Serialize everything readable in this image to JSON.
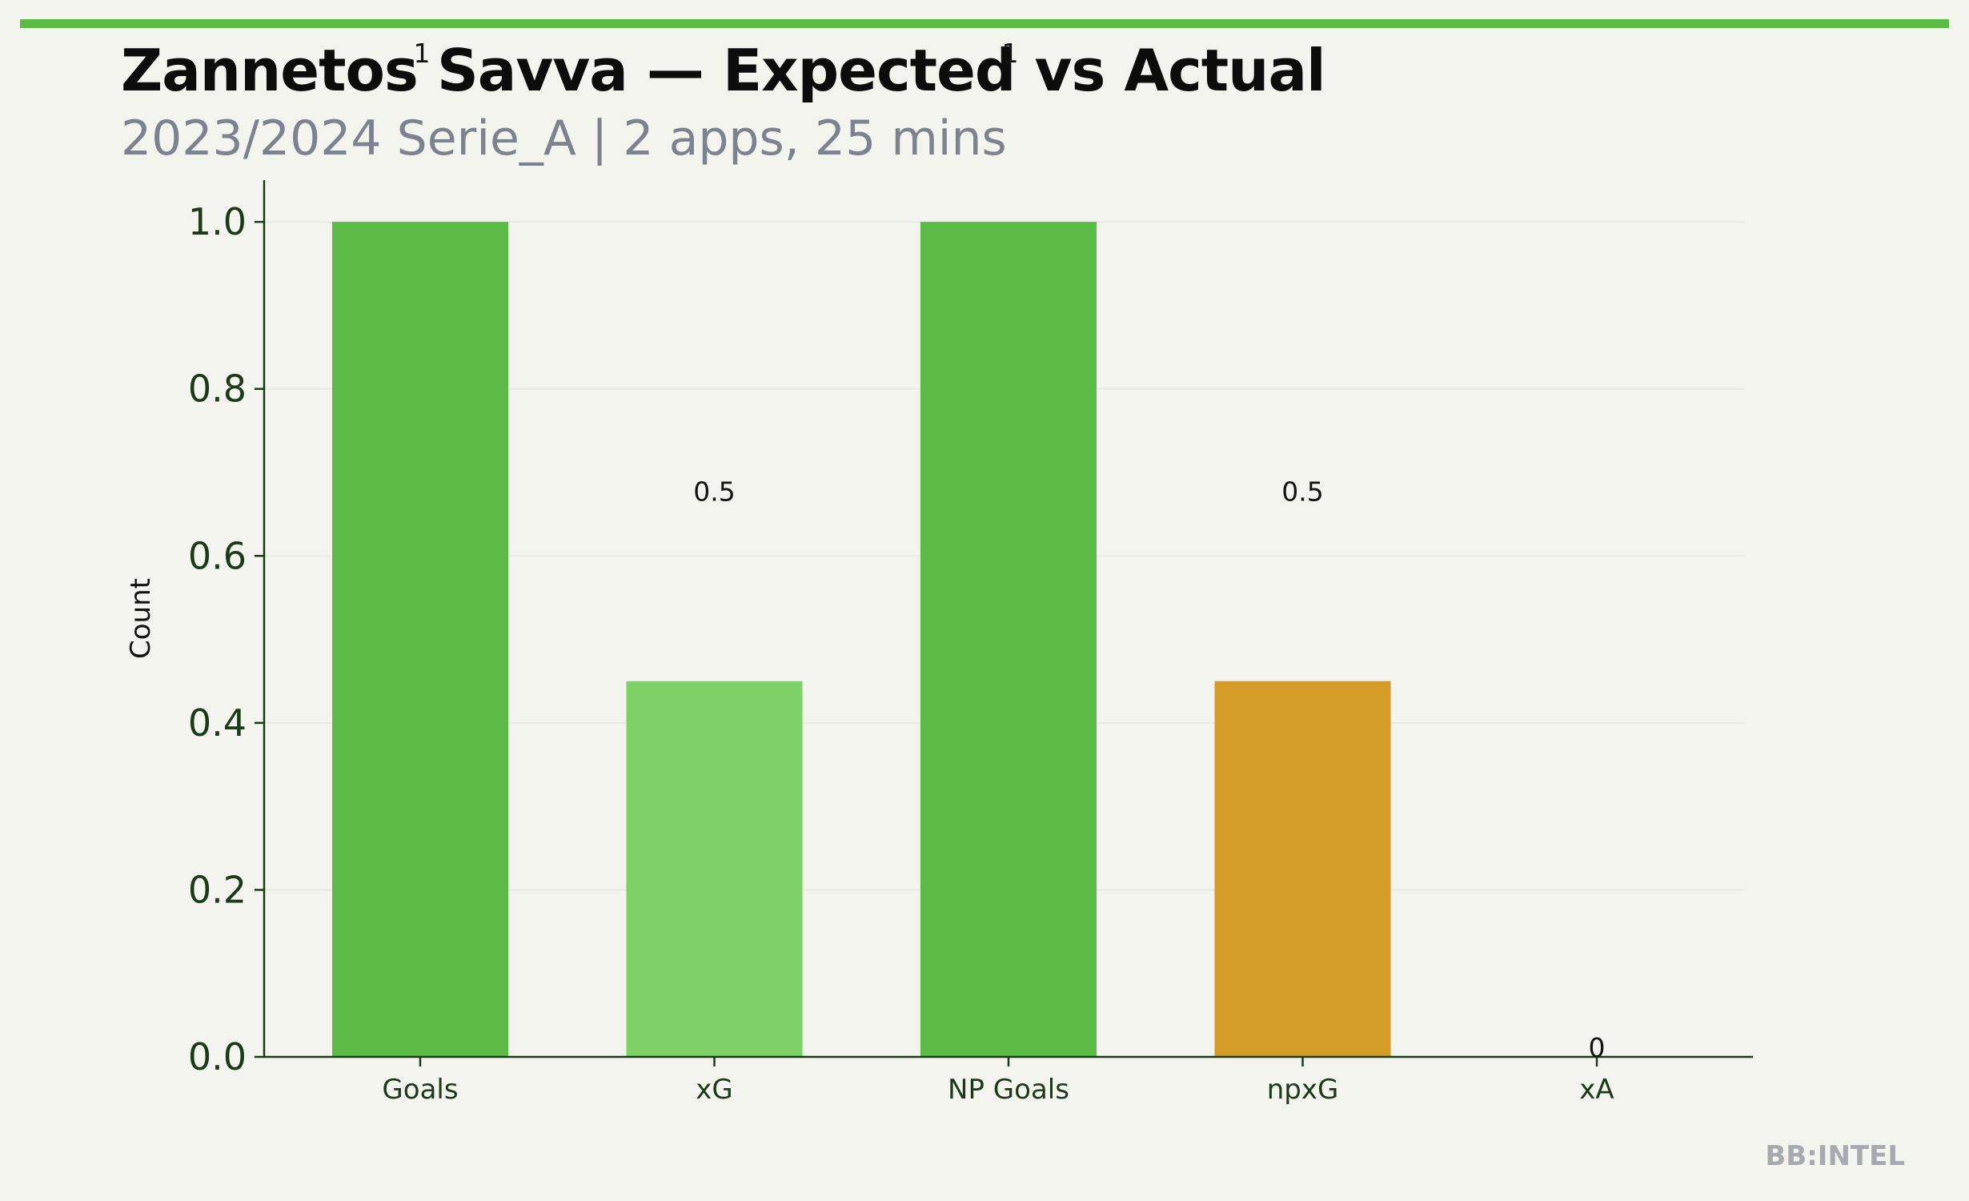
{
  "header": {
    "title": "Zannetos Savva — Expected vs Actual",
    "subtitle": "2023/2024 Serie_A | 2 apps, 25 mins"
  },
  "watermark": "BB:INTEL",
  "colors": {
    "accent": "#5cba47",
    "bar_actual": "#5cba47",
    "bar_xg": "#7dd166",
    "bar_npxg": "#d49c27",
    "bar_xa": "#7dd166",
    "axis": "#1c3a1a"
  },
  "chart_data": {
    "type": "bar",
    "title": "Zannetos Savva — Expected vs Actual",
    "subtitle": "2023/2024 Serie_A | 2 apps, 25 mins",
    "xlabel": "",
    "ylabel": "Count",
    "ylim": [
      0,
      1.05
    ],
    "yticks": [
      "0.0",
      "0.2",
      "0.4",
      "0.6",
      "0.8",
      "1.0"
    ],
    "ytick_values": [
      0,
      0.2,
      0.4,
      0.6,
      0.8,
      1.0
    ],
    "grid": "horizontal",
    "categories": [
      "Goals",
      "xG",
      "NP Goals",
      "npxG",
      "xA"
    ],
    "values": [
      1,
      0.45,
      1,
      0.45,
      0
    ],
    "data_labels": [
      "1",
      "0.5",
      "1",
      "0.5",
      "0"
    ],
    "bar_colors": [
      "#5cba47",
      "#7dd166",
      "#5cba47",
      "#d49c27",
      "#7dd166"
    ]
  }
}
